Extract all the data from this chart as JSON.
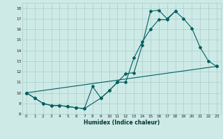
{
  "xlabel": "Humidex (Indice chaleur)",
  "bg_color": "#ceeae6",
  "grid_color": "#aacccc",
  "line_color": "#006060",
  "xlim": [
    -0.5,
    23.5
  ],
  "ylim": [
    8.0,
    18.5
  ],
  "yticks": [
    8,
    9,
    10,
    11,
    12,
    13,
    14,
    15,
    16,
    17,
    18
  ],
  "xticks": [
    0,
    1,
    2,
    3,
    4,
    5,
    6,
    7,
    8,
    9,
    10,
    11,
    12,
    13,
    14,
    15,
    16,
    17,
    18,
    19,
    20,
    21,
    22,
    23
  ],
  "series1_x": [
    0,
    1,
    2,
    3,
    4,
    5,
    6,
    7,
    9,
    10,
    11,
    12,
    13,
    14,
    15,
    16,
    17,
    18,
    19,
    20,
    21,
    22,
    23
  ],
  "series1_y": [
    10.0,
    9.5,
    9.0,
    8.8,
    8.8,
    8.7,
    8.6,
    8.5,
    9.5,
    10.2,
    11.0,
    11.0,
    13.3,
    14.8,
    16.0,
    16.9,
    16.9,
    17.7,
    17.0,
    16.1,
    14.3,
    13.0,
    12.5
  ],
  "series2_x": [
    0,
    1,
    2,
    3,
    4,
    5,
    6,
    7,
    8,
    9,
    10,
    11,
    12,
    13,
    14,
    15,
    16,
    17,
    18
  ],
  "series2_y": [
    10.0,
    9.5,
    9.0,
    8.8,
    8.8,
    8.7,
    8.6,
    8.5,
    10.6,
    9.5,
    10.2,
    11.0,
    11.8,
    11.9,
    14.5,
    17.7,
    17.8,
    17.0,
    17.7
  ],
  "series3_x": [
    0,
    23
  ],
  "series3_y": [
    10.0,
    12.5
  ]
}
